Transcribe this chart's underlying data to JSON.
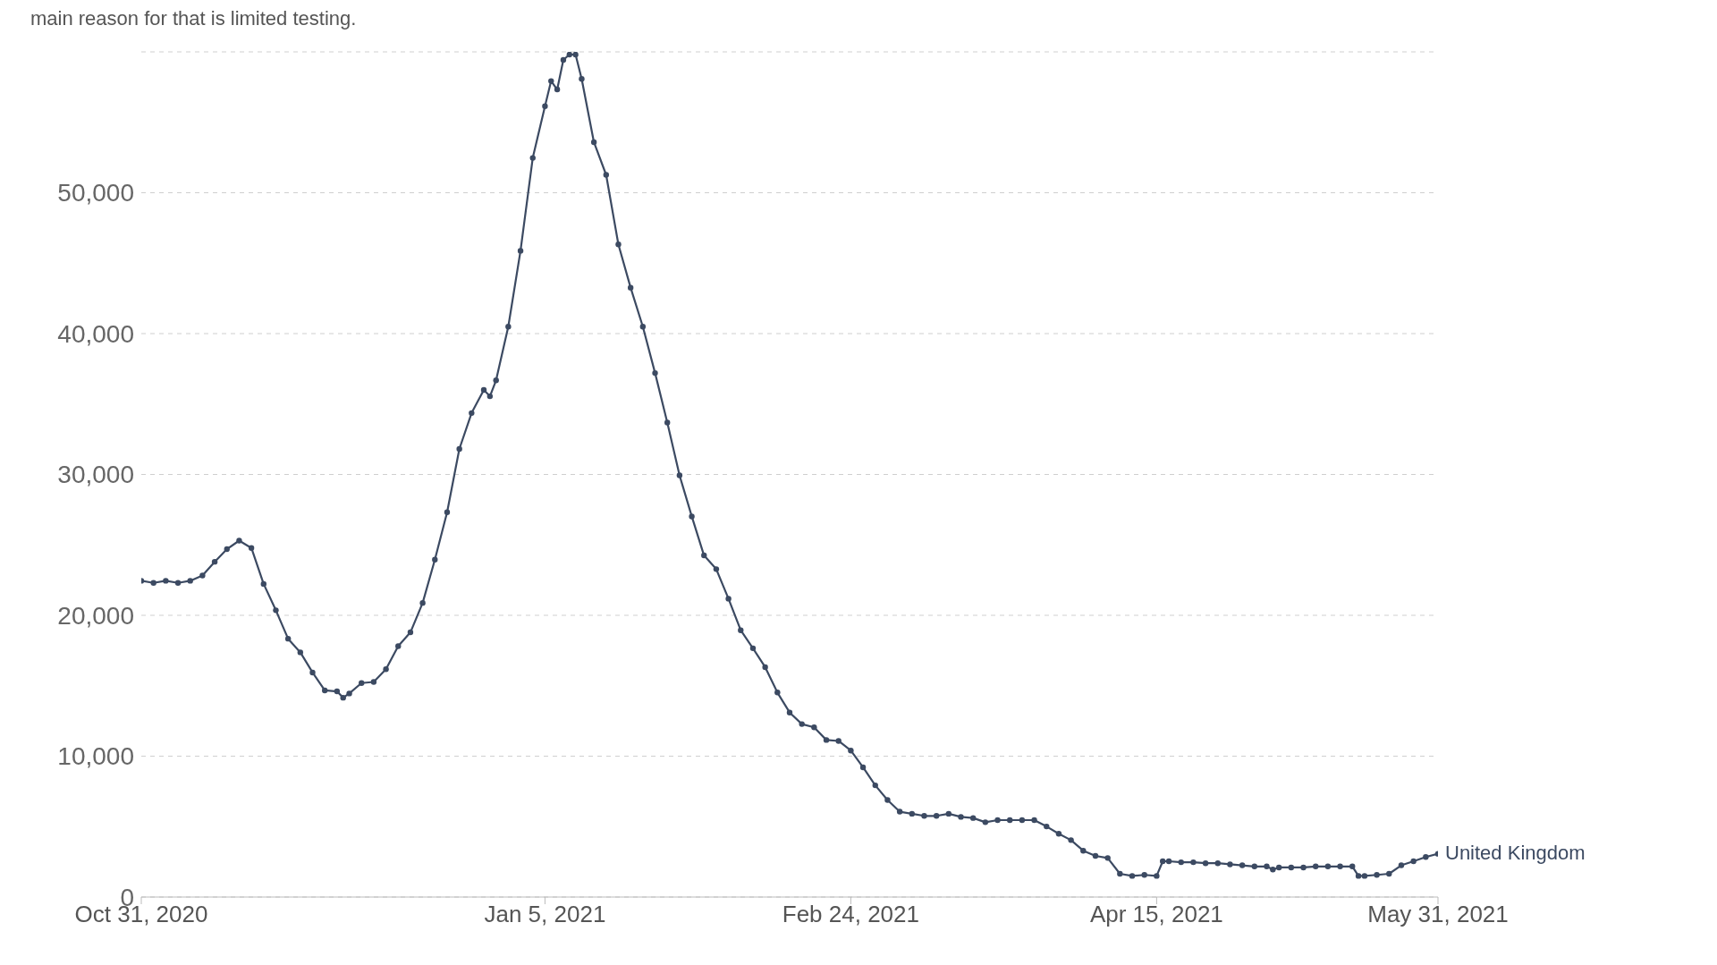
{
  "chart_data": {
    "type": "line",
    "subtitle": "main reason for that is limited testing.",
    "x": [
      "2020-10-31",
      "2020-11-02",
      "2020-11-04",
      "2020-11-06",
      "2020-11-08",
      "2020-11-10",
      "2020-11-12",
      "2020-11-14",
      "2020-11-16",
      "2020-11-18",
      "2020-11-20",
      "2020-11-22",
      "2020-11-24",
      "2020-11-26",
      "2020-11-28",
      "2020-11-30",
      "2020-12-02",
      "2020-12-03",
      "2020-12-04",
      "2020-12-06",
      "2020-12-08",
      "2020-12-10",
      "2020-12-12",
      "2020-12-14",
      "2020-12-16",
      "2020-12-18",
      "2020-12-20",
      "2020-12-22",
      "2020-12-24",
      "2020-12-26",
      "2020-12-27",
      "2020-12-28",
      "2020-12-30",
      "2021-01-01",
      "2021-01-03",
      "2021-01-05",
      "2021-01-06",
      "2021-01-07",
      "2021-01-08",
      "2021-01-09",
      "2021-01-10",
      "2021-01-11",
      "2021-01-13",
      "2021-01-15",
      "2021-01-17",
      "2021-01-19",
      "2021-01-21",
      "2021-01-23",
      "2021-01-25",
      "2021-01-27",
      "2021-01-29",
      "2021-01-31",
      "2021-02-02",
      "2021-02-04",
      "2021-02-06",
      "2021-02-08",
      "2021-02-10",
      "2021-02-12",
      "2021-02-14",
      "2021-02-16",
      "2021-02-18",
      "2021-02-20",
      "2021-02-22",
      "2021-02-24",
      "2021-02-26",
      "2021-02-28",
      "2021-03-02",
      "2021-03-04",
      "2021-03-06",
      "2021-03-08",
      "2021-03-10",
      "2021-03-12",
      "2021-03-14",
      "2021-03-16",
      "2021-03-18",
      "2021-03-20",
      "2021-03-22",
      "2021-03-24",
      "2021-03-26",
      "2021-03-28",
      "2021-03-30",
      "2021-04-01",
      "2021-04-03",
      "2021-04-05",
      "2021-04-07",
      "2021-04-09",
      "2021-04-11",
      "2021-04-13",
      "2021-04-15",
      "2021-04-16",
      "2021-04-17",
      "2021-04-19",
      "2021-04-21",
      "2021-04-23",
      "2021-04-25",
      "2021-04-27",
      "2021-04-29",
      "2021-05-01",
      "2021-05-03",
      "2021-05-04",
      "2021-05-05",
      "2021-05-07",
      "2021-05-09",
      "2021-05-11",
      "2021-05-13",
      "2021-05-15",
      "2021-05-17",
      "2021-05-18",
      "2021-05-19",
      "2021-05-21",
      "2021-05-23",
      "2021-05-25",
      "2021-05-27",
      "2021-05-29",
      "2021-05-31"
    ],
    "series": [
      {
        "name": "United Kingdom",
        "color": "#3c4a62",
        "values": [
          22450,
          22300,
          22450,
          22300,
          22450,
          22830,
          23800,
          24700,
          25300,
          24780,
          22230,
          20360,
          18340,
          17370,
          15940,
          14670,
          14600,
          14150,
          14450,
          15190,
          15270,
          16170,
          17810,
          18790,
          20880,
          23950,
          27320,
          31810,
          34360,
          36000,
          35550,
          36680,
          40490,
          45880,
          52470,
          56140,
          57930,
          57330,
          59430,
          59810,
          59810,
          58080,
          53590,
          51270,
          46330,
          43260,
          40490,
          37200,
          33680,
          29940,
          27020,
          24250,
          23280,
          21180,
          18940,
          17660,
          16320,
          14520,
          13100,
          12280,
          12050,
          11150,
          11080,
          10400,
          9210,
          7930,
          6890,
          6060,
          5910,
          5760,
          5760,
          5910,
          5690,
          5610,
          5310,
          5460,
          5460,
          5460,
          5460,
          5010,
          4490,
          4040,
          3290,
          2920,
          2770,
          1650,
          1500,
          1570,
          1500,
          2540,
          2540,
          2470,
          2470,
          2400,
          2400,
          2320,
          2250,
          2170,
          2170,
          1950,
          2100,
          2100,
          2100,
          2170,
          2170,
          2170,
          2170,
          1500,
          1500,
          1570,
          1650,
          2250,
          2540,
          2840,
          3070
        ]
      }
    ],
    "xlim": [
      "2020-10-31",
      "2021-05-31"
    ],
    "xticks": [
      {
        "value": "2020-10-31",
        "label": "Oct 31, 2020"
      },
      {
        "value": "2021-01-05",
        "label": "Jan 5, 2021"
      },
      {
        "value": "2021-02-24",
        "label": "Feb 24, 2021"
      },
      {
        "value": "2021-04-15",
        "label": "Apr 15, 2021"
      },
      {
        "value": "2021-05-31",
        "label": "May 31, 2021"
      }
    ],
    "ylim": [
      0,
      60000
    ],
    "yticks": [
      0,
      {
        "value": 10000,
        "label": "10,000"
      },
      {
        "value": 20000,
        "label": "20,000"
      },
      {
        "value": 30000,
        "label": "30,000"
      },
      {
        "value": 40000,
        "label": "40,000"
      },
      {
        "value": 50000,
        "label": "50,000"
      }
    ],
    "grid": "y",
    "marker": "circle",
    "line_style": "solid"
  }
}
